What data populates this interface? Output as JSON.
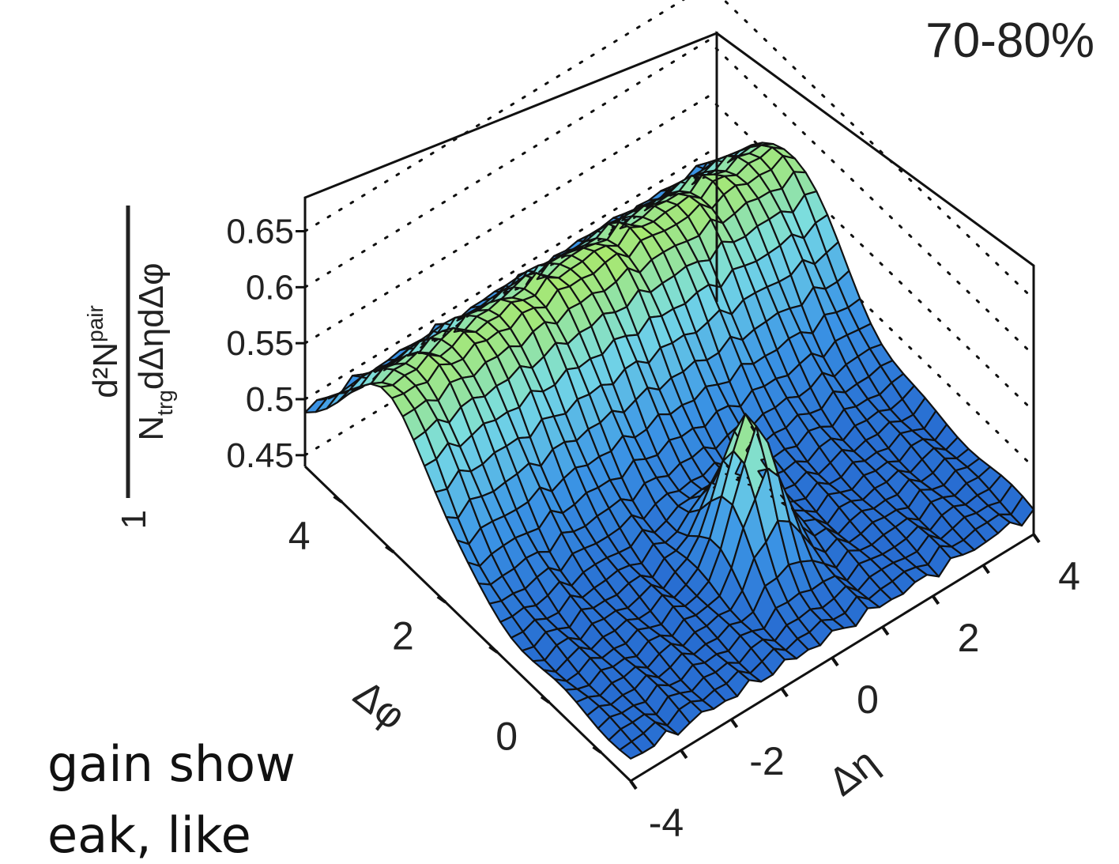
{
  "chart_data": {
    "type": "surface",
    "panel_label": "70-80%",
    "zlabel": {
      "numerator": "d²N",
      "numerator_sup": "pair",
      "denominator_prefix": "N",
      "denominator_sub": "trg",
      "denominator_rest": "dΔηdΔφ",
      "prefactor": "1"
    },
    "xlabel": "Δη",
    "ylabel": "Δφ",
    "xticks": [
      "-4",
      "-2",
      "0",
      "2",
      "4"
    ],
    "yticks": [
      "0",
      "2",
      "4"
    ],
    "zticks": [
      "0.45",
      "0.5",
      "0.55",
      "0.6",
      "0.65"
    ],
    "xlim": [
      -4,
      4
    ],
    "ylim": [
      -1.57,
      4.71
    ],
    "zlim": [
      0.44,
      0.68
    ],
    "grid": true,
    "surface_model": {
      "baseline": 0.46,
      "ridge_amplitude": 0.12,
      "ridge_center_dphi": 3.14,
      "ridge_sigma_dphi": 0.95,
      "ridge_eta_falloff": 0.05,
      "peak_amplitude": 0.12,
      "peak_sigma_deta": 0.42,
      "peak_sigma_dphi": 0.42,
      "peak_center": [
        0,
        0
      ],
      "peak_value": 0.66
    }
  },
  "caption": {
    "line1": "gain show",
    "line2": "eak, like"
  }
}
